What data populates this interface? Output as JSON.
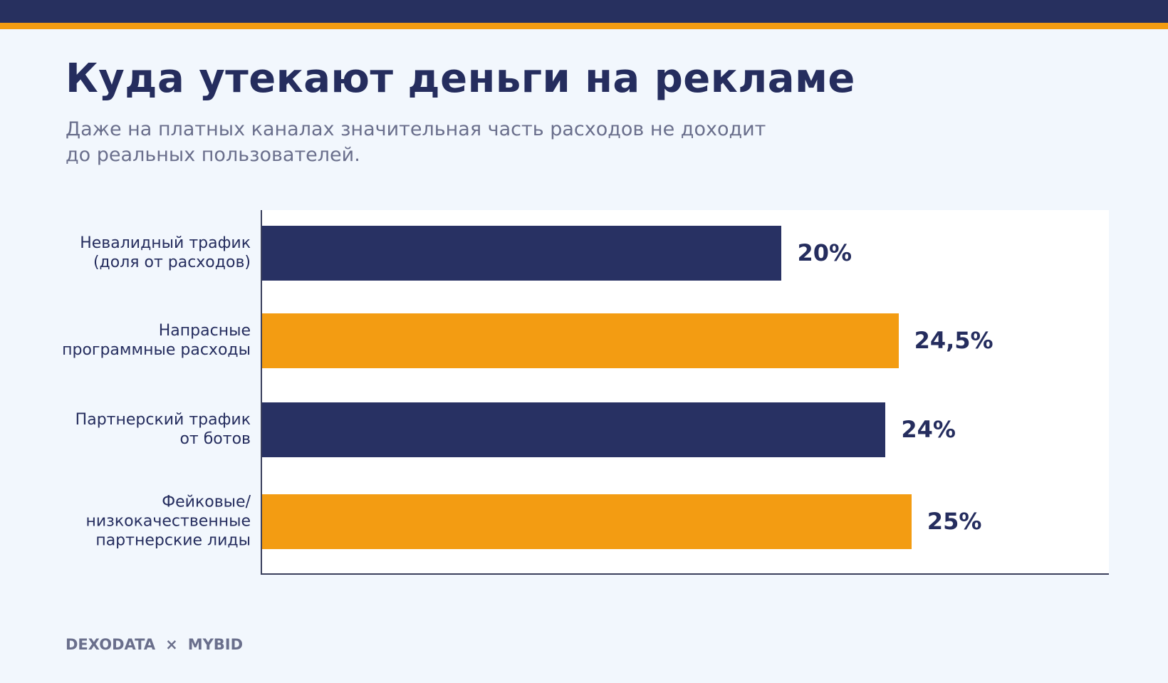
{
  "header": {
    "title": "Куда утекают деньги на рекламе",
    "subtitle": "Даже на платных каналах значительная часть расходов не доходит\nдо реальных пользователей."
  },
  "colors": {
    "navy": "#283163",
    "orange": "#f39c12"
  },
  "chart_data": {
    "type": "bar",
    "orientation": "horizontal",
    "categories": [
      "Невалидный трафик\n(доля от расходов)",
      "Напрасные\nпрограммные расходы",
      "Партнерский трафик\nот ботов",
      "Фейковые/\nнизкокачественные\nпартнерские лиды"
    ],
    "values": [
      20,
      24.5,
      24,
      25
    ],
    "value_labels": [
      "20%",
      "24,5%",
      "24%",
      "25%"
    ],
    "bar_colors": [
      "#283163",
      "#f39c12",
      "#283163",
      "#f39c12"
    ],
    "xlim": [
      0,
      32.6
    ],
    "unit": "%",
    "grid": false,
    "legend": "none"
  },
  "footer": {
    "brand_left": "DEXODATA",
    "separator": "×",
    "brand_right": "MYBID"
  }
}
